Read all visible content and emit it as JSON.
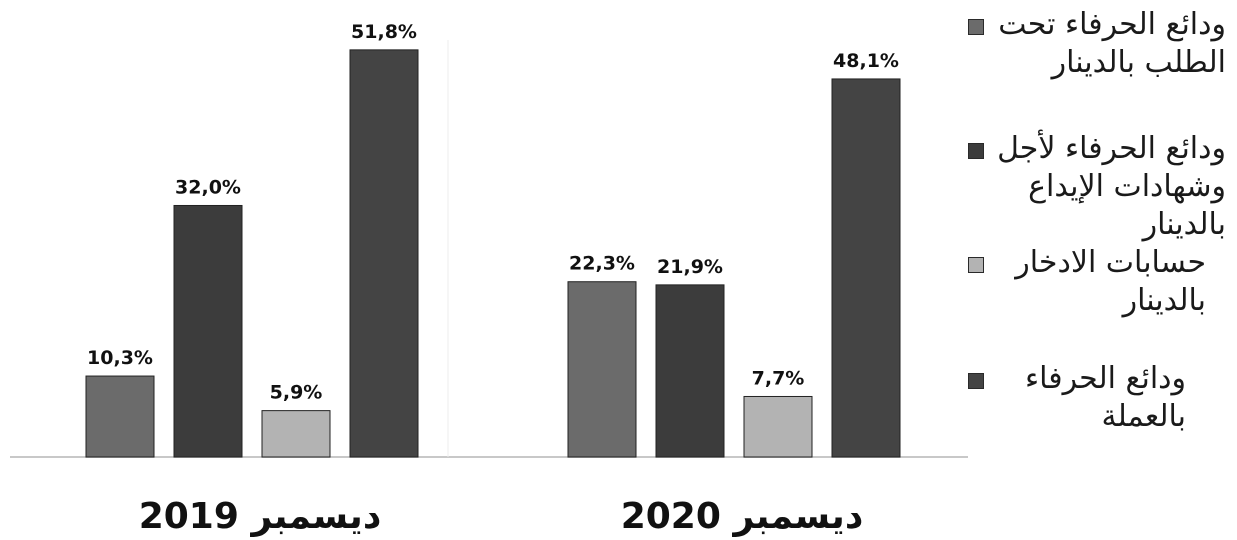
{
  "chart_data": {
    "type": "bar",
    "categories": [
      "ديسمبر 2019",
      "ديسمبر 2020"
    ],
    "series": [
      {
        "name": "ودائع الحرفاء تحت الطلب بالدينار",
        "values": [
          10.3,
          22.3
        ],
        "color": "#6b6b6b"
      },
      {
        "name": "ودائع الحرفاء لأجل وشهادات الإيداع بالدينار",
        "values": [
          32.0,
          21.9
        ],
        "color": "#3c3c3c"
      },
      {
        "name": "حسابات الادخار بالدينار",
        "values": [
          5.9,
          7.7
        ],
        "color": "#b3b3b3"
      },
      {
        "name": "ودائع الحرفاء بالعملة",
        "values": [
          51.8,
          48.1
        ],
        "color": "#444444"
      }
    ],
    "value_labels": [
      [
        "10,3%",
        "32,0%",
        "5,9%",
        "51,8%"
      ],
      [
        "22,3%",
        "21,9%",
        "7,7%",
        "48,1%"
      ]
    ],
    "ylim": [
      0,
      55
    ],
    "grid": false,
    "legend": "right"
  },
  "legend": {
    "items": [
      {
        "label": "ودائع الحرفاء تحت الطلب بالدينار",
        "color": "#6b6b6b"
      },
      {
        "label": "ودائع الحرفاء لأجل وشهادات الإيداع بالدينار",
        "color": "#3c3c3c"
      },
      {
        "label": "حسابات الادخار بالدينار",
        "color": "#b3b3b3"
      },
      {
        "label": "ودائع الحرفاء بالعملة",
        "color": "#444444"
      }
    ]
  }
}
